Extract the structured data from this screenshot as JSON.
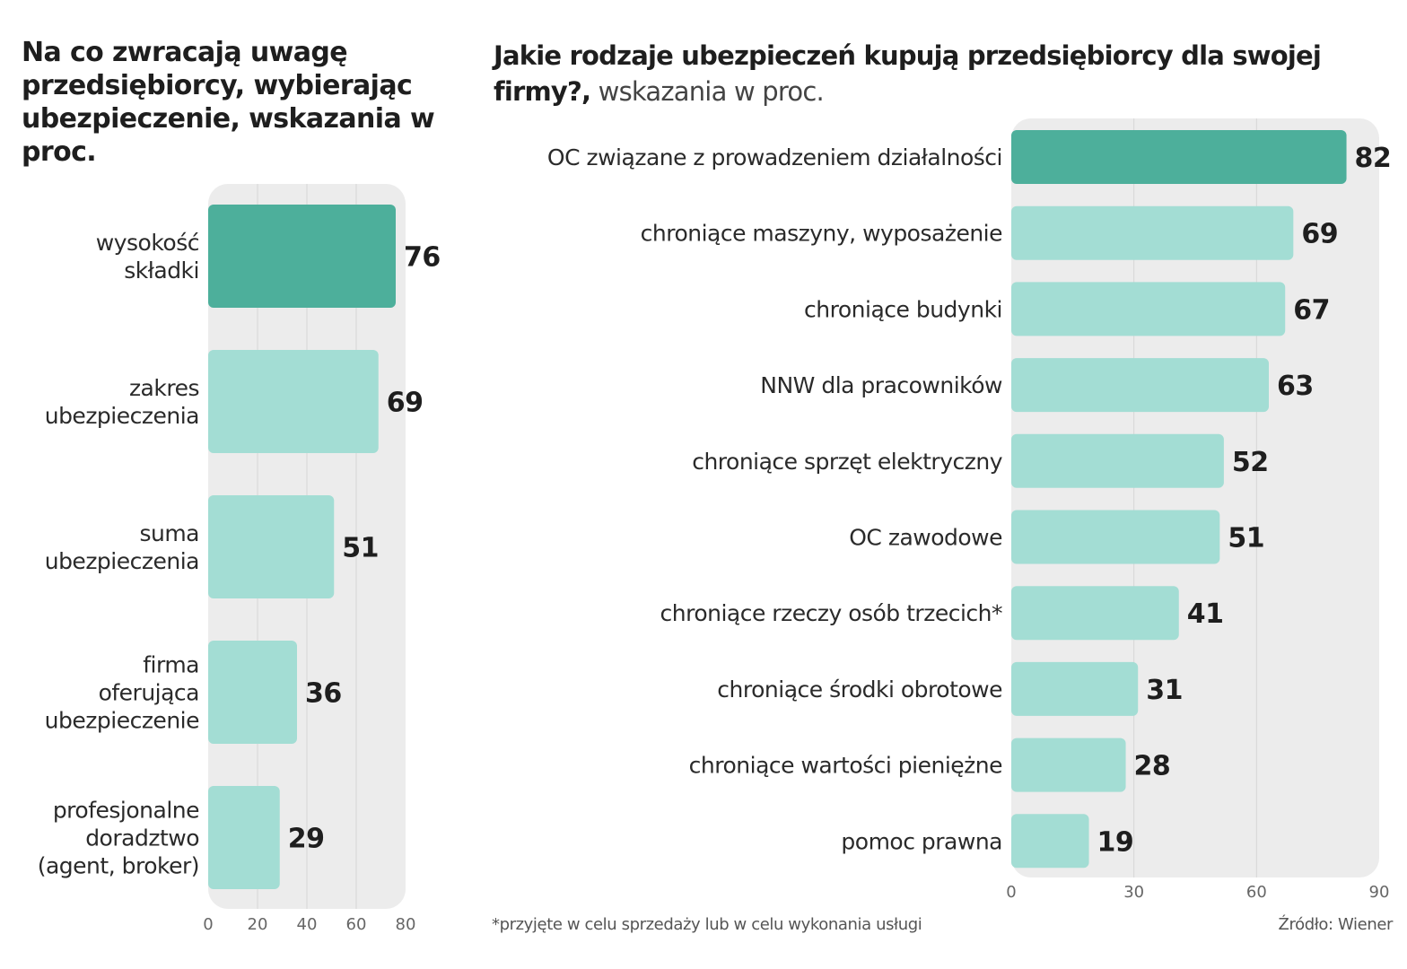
{
  "colors": {
    "highlight": "#4daf9b",
    "bar": "#a3ddd4",
    "panel": "#ececec",
    "grid": "#d6d6d6"
  },
  "chart_data": [
    {
      "type": "bar",
      "orientation": "horizontal",
      "title": "Na co zwracają uwagę przedsiębiorcy, wybierając ubezpieczenie, wskazania w proc.",
      "categories": [
        [
          "wysokość",
          "składki"
        ],
        [
          "zakres",
          "ubezpieczenia"
        ],
        [
          "suma",
          "ubezpieczenia"
        ],
        [
          "firma",
          "oferująca",
          "ubezpieczenie"
        ],
        [
          "profesjonalne",
          "doradztwo",
          "(agent, broker)"
        ]
      ],
      "values": [
        76,
        69,
        51,
        36,
        29
      ],
      "highlight_index": 0,
      "xlim": [
        0,
        80
      ],
      "xticks": [
        0,
        20,
        40,
        60,
        80
      ],
      "xlabel": "",
      "ylabel": "",
      "grid": true
    },
    {
      "type": "bar",
      "orientation": "horizontal",
      "title": "Jakie rodzaje ubezpieczeń kupują przedsiębiorcy dla swojej firmy?, wskazania w proc.",
      "categories": [
        "OC związane z prowadzeniem działalności",
        "chroniące maszyny, wyposażenie",
        "chroniące budynki",
        "NNW dla pracowników",
        "chroniące sprzęt elektryczny",
        "OC zawodowe",
        "chroniące rzeczy osób trzecich*",
        "chroniące środki obrotowe",
        "chroniące wartości pieniężne",
        "pomoc prawna"
      ],
      "values": [
        82,
        69,
        67,
        63,
        52,
        51,
        41,
        31,
        28,
        19
      ],
      "highlight_index": 0,
      "xlim": [
        0,
        90
      ],
      "xticks": [
        0,
        30,
        60,
        90
      ],
      "xlabel": "",
      "ylabel": "",
      "grid": true
    }
  ],
  "left": {
    "title": "Na co zwracają uwagę przedsiębiorcy, wybierając ubezpieczenie, wskazania w proc."
  },
  "right": {
    "title_bold": "Jakie rodzaje ubezpieczeń kupują przedsiębiorcy dla swojej firmy?,",
    "title_light": " wskazania w proc."
  },
  "footnote": "*przyjęte w celu sprzedaży lub w celu wykonania usługi",
  "source": "Źródło: Wiener"
}
